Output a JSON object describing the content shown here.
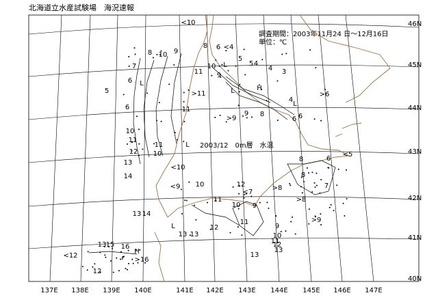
{
  "header": {
    "title": "北海道立水産試験場　海況速報",
    "period": "調査期間：2003年11月24 日～12月16日",
    "unit": "単位：℃"
  },
  "map": {
    "label": "2003/12　0m層　水温",
    "longitudes": [
      "137E",
      "138E",
      "139E",
      "140E",
      "141E",
      "142E",
      "143E",
      "144E",
      "145E",
      "146E",
      "147E"
    ],
    "latitudes": [
      "46N",
      "45N",
      "44N",
      "43N",
      "42N",
      "41N",
      "40N"
    ],
    "contour_labels": [
      "8",
      "9",
      "10",
      "7",
      "6",
      "L",
      "5",
      "6",
      "<10",
      "11",
      ">11",
      "11",
      "10",
      "11",
      "12",
      "L",
      "11",
      "10",
      "13",
      "<10",
      "14",
      "13",
      "14",
      "<9",
      "10",
      "11",
      "12",
      "<7",
      ">8",
      "9",
      "10",
      "11",
      "12",
      "13",
      "L",
      "13",
      "9",
      "10",
      "11",
      "12",
      "13",
      "13",
      "8",
      "6",
      "<5",
      "7",
      "8",
      ">8",
      ">9",
      "8",
      "6",
      "<4",
      "L",
      "10",
      "9",
      "5",
      "5",
      "4",
      "4",
      "3",
      "4",
      "L",
      "H",
      "L",
      "6",
      "6",
      "9",
      "8",
      ">9",
      ">6",
      "13",
      "15",
      "16",
      "H",
      "<12",
      "12",
      ">16"
    ]
  }
}
